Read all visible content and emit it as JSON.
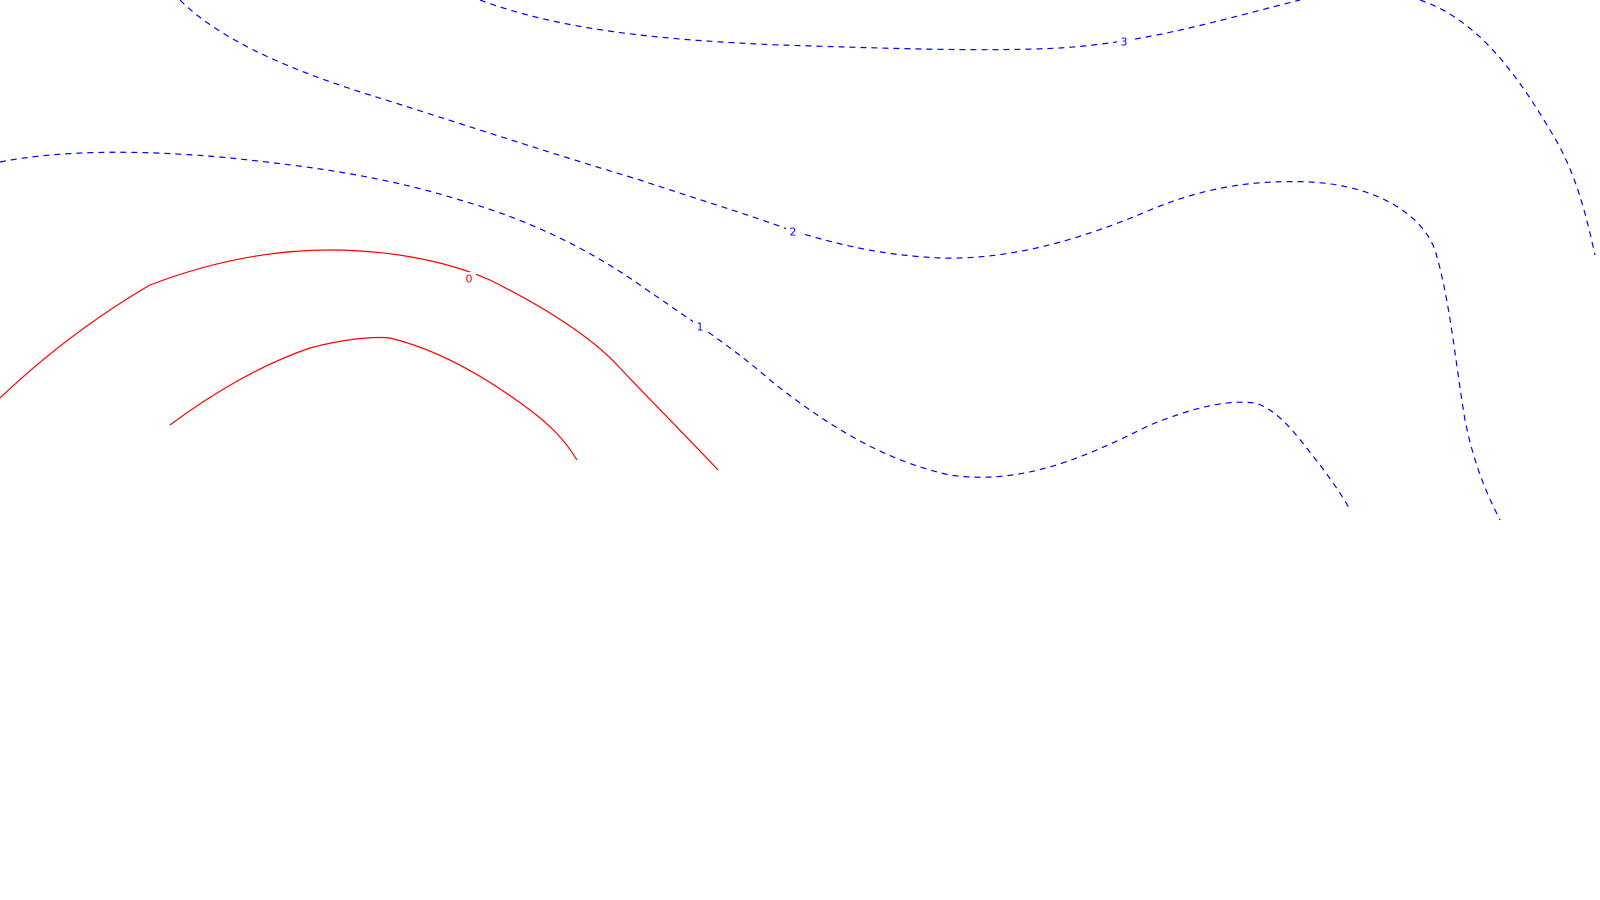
{
  "chart_data": {
    "type": "contour",
    "title": "",
    "xlabel": "",
    "ylabel": "",
    "grid": false,
    "legend": false,
    "colors": {
      "positive": "#0000ff",
      "zero": "#ff0000",
      "background": "#ffffff"
    },
    "levels": [
      {
        "value": 3,
        "label": "3",
        "style": "dashed",
        "color": "#0000ff"
      },
      {
        "value": 2,
        "label": "2",
        "style": "dashed",
        "color": "#0000ff"
      },
      {
        "value": 1,
        "label": "1",
        "style": "dashed",
        "color": "#0000ff"
      },
      {
        "value": 0,
        "label": "0",
        "style": "solid",
        "color": "#ff0000"
      }
    ]
  }
}
